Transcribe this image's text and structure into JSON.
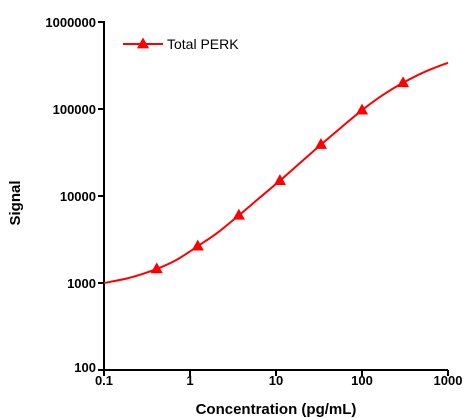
{
  "chart_data": {
    "type": "line",
    "title": "",
    "xlabel": "Concentration (pg/mL)",
    "ylabel": "Signal",
    "xscale": "log",
    "yscale": "log",
    "xlim": [
      0.1,
      1000
    ],
    "ylim": [
      100,
      1000000
    ],
    "x_ticks": [
      "0.1",
      "1",
      "10",
      "100",
      "1000"
    ],
    "y_ticks": [
      "100",
      "1000",
      "10000",
      "100000",
      "1000000"
    ],
    "grid": false,
    "legend": "top-left",
    "series": [
      {
        "name": "Total PERK",
        "color": "#ff0000",
        "marker": "triangle",
        "points": [
          {
            "x": 0.41,
            "y": 1450
          },
          {
            "x": 1.23,
            "y": 2650
          },
          {
            "x": 3.7,
            "y": 6000
          },
          {
            "x": 11.1,
            "y": 15000
          },
          {
            "x": 33.3,
            "y": 39000
          },
          {
            "x": 100,
            "y": 97000
          },
          {
            "x": 300,
            "y": 200000
          }
        ],
        "curve": [
          {
            "x": 0.1,
            "y": 1000
          },
          {
            "x": 0.2,
            "y": 1150
          },
          {
            "x": 0.41,
            "y": 1450
          },
          {
            "x": 0.7,
            "y": 1850
          },
          {
            "x": 1.23,
            "y": 2650
          },
          {
            "x": 2.1,
            "y": 3800
          },
          {
            "x": 3.7,
            "y": 6000
          },
          {
            "x": 6.5,
            "y": 9600
          },
          {
            "x": 11.1,
            "y": 15000
          },
          {
            "x": 19.5,
            "y": 24500
          },
          {
            "x": 33.3,
            "y": 39000
          },
          {
            "x": 58,
            "y": 62000
          },
          {
            "x": 100,
            "y": 97000
          },
          {
            "x": 175,
            "y": 145000
          },
          {
            "x": 300,
            "y": 200000
          },
          {
            "x": 550,
            "y": 270000
          },
          {
            "x": 1000,
            "y": 340000
          }
        ]
      }
    ]
  }
}
